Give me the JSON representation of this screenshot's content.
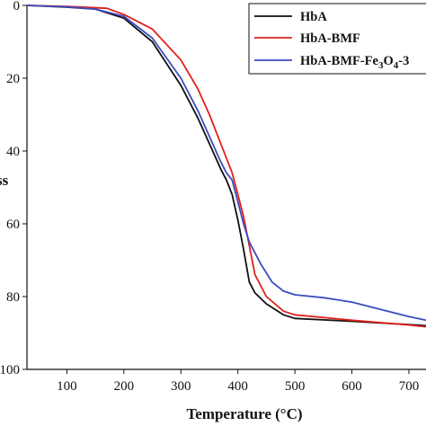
{
  "chart_data": {
    "type": "line",
    "title": "",
    "xlabel": "Temperature (°C)",
    "ylabel": "ss",
    "xlim": [
      30,
      730
    ],
    "ylim": [
      0,
      100
    ],
    "y_inverted": true,
    "grid": false,
    "legend_position": "top-right",
    "x_ticks": [
      "100",
      "200",
      "300",
      "400",
      "500",
      "600",
      "700"
    ],
    "y_ticks": [
      "0",
      "20",
      "40",
      "60",
      "80",
      "100"
    ],
    "series": [
      {
        "name": "HbA",
        "color": "#111111",
        "points": [
          [
            30,
            0
          ],
          [
            100,
            0.5
          ],
          [
            150,
            1
          ],
          [
            200,
            3.5
          ],
          [
            250,
            10
          ],
          [
            300,
            22
          ],
          [
            330,
            31
          ],
          [
            350,
            38
          ],
          [
            370,
            45
          ],
          [
            380,
            48
          ],
          [
            390,
            52
          ],
          [
            400,
            59
          ],
          [
            410,
            67
          ],
          [
            420,
            76
          ],
          [
            430,
            79
          ],
          [
            450,
            82
          ],
          [
            480,
            85
          ],
          [
            500,
            86
          ],
          [
            600,
            86.8
          ],
          [
            700,
            87.7
          ],
          [
            730,
            88
          ]
        ]
      },
      {
        "name": "HbA-BMF",
        "color": "#e0201c",
        "points": [
          [
            30,
            0
          ],
          [
            100,
            0.3
          ],
          [
            170,
            0.8
          ],
          [
            200,
            2.5
          ],
          [
            250,
            6.5
          ],
          [
            300,
            15
          ],
          [
            330,
            23
          ],
          [
            350,
            30
          ],
          [
            370,
            38
          ],
          [
            390,
            46
          ],
          [
            400,
            52
          ],
          [
            410,
            58
          ],
          [
            420,
            66
          ],
          [
            430,
            74
          ],
          [
            450,
            80
          ],
          [
            480,
            84
          ],
          [
            500,
            85
          ],
          [
            600,
            86.5
          ],
          [
            700,
            87.8
          ],
          [
            730,
            88.3
          ]
        ]
      },
      {
        "name": "HbA-BMF-Fe3O4-3",
        "name_main": "HbA-BMF-Fe",
        "name_sub1": "3",
        "name_mid": "O",
        "name_sub2": "4",
        "name_tail": "-3",
        "color": "#3b4cc0",
        "points": [
          [
            30,
            0
          ],
          [
            100,
            0.4
          ],
          [
            150,
            1
          ],
          [
            200,
            3
          ],
          [
            250,
            9
          ],
          [
            300,
            20
          ],
          [
            330,
            29
          ],
          [
            350,
            36
          ],
          [
            370,
            43
          ],
          [
            380,
            46
          ],
          [
            390,
            48
          ],
          [
            400,
            54
          ],
          [
            410,
            60
          ],
          [
            420,
            65
          ],
          [
            440,
            71
          ],
          [
            460,
            76
          ],
          [
            480,
            78.5
          ],
          [
            500,
            79.5
          ],
          [
            550,
            80.3
          ],
          [
            600,
            81.5
          ],
          [
            650,
            83.5
          ],
          [
            700,
            85.5
          ],
          [
            730,
            86.5
          ]
        ]
      }
    ]
  }
}
